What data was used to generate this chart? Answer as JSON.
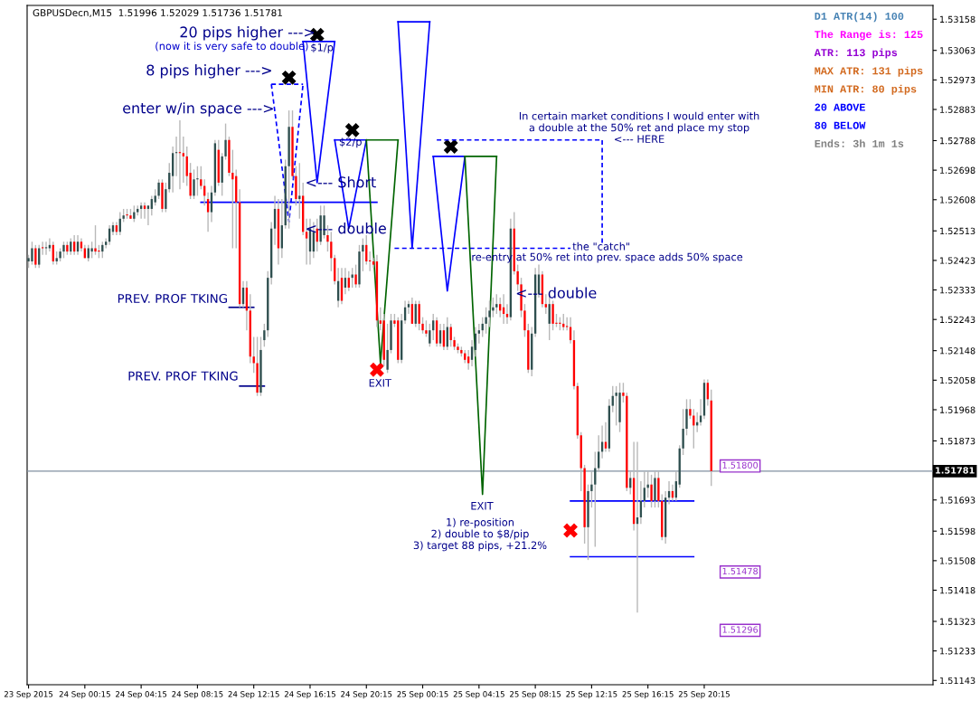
{
  "chart_data": {
    "type": "candlestick",
    "title": "GBPUSDecn,M15  1.51996 1.52029 1.51736 1.51781",
    "x": [
      "2015-09-23T20:15",
      "2015-09-23T20:30",
      "2015-09-23T20:45",
      "2015-09-23T21:00",
      "2015-09-23T21:15",
      "2015-09-23T21:30",
      "2015-09-23T21:45",
      "2015-09-23T22:00",
      "2015-09-23T22:15",
      "2015-09-23T22:30",
      "2015-09-23T22:45",
      "2015-09-23T23:00",
      "2015-09-23T23:15",
      "2015-09-23T23:30",
      "2015-09-23T23:45",
      "2015-09-24T00:00",
      "2015-09-24T00:15",
      "2015-09-24T00:30",
      "2015-09-24T00:45",
      "2015-09-24T01:00",
      "2015-09-24T01:15",
      "2015-09-24T01:30",
      "2015-09-24T01:45",
      "2015-09-24T02:00",
      "2015-09-24T02:15",
      "2015-09-24T02:30",
      "2015-09-24T02:45",
      "2015-09-24T03:00",
      "2015-09-24T03:15",
      "2015-09-24T03:30",
      "2015-09-24T03:45",
      "2015-09-24T04:00",
      "2015-09-24T04:15",
      "2015-09-24T04:30",
      "2015-09-24T04:45",
      "2015-09-24T05:00",
      "2015-09-24T05:15",
      "2015-09-24T05:30",
      "2015-09-24T05:45",
      "2015-09-24T06:00",
      "2015-09-24T06:15",
      "2015-09-24T06:30",
      "2015-09-24T06:45",
      "2015-09-24T07:00",
      "2015-09-24T07:15",
      "2015-09-24T07:30",
      "2015-09-24T07:45",
      "2015-09-24T08:00",
      "2015-09-24T08:15",
      "2015-09-24T08:30",
      "2015-09-24T08:45",
      "2015-09-24T09:00",
      "2015-09-24T09:15",
      "2015-09-24T09:30",
      "2015-09-24T09:45",
      "2015-09-24T10:00",
      "2015-09-24T10:15",
      "2015-09-24T10:30",
      "2015-09-24T10:45",
      "2015-09-24T11:00",
      "2015-09-24T11:15",
      "2015-09-24T11:30",
      "2015-09-24T11:45",
      "2015-09-24T12:00",
      "2015-09-24T12:15",
      "2015-09-24T12:30",
      "2015-09-24T12:45",
      "2015-09-24T13:00",
      "2015-09-24T13:15",
      "2015-09-24T13:30",
      "2015-09-24T13:45",
      "2015-09-24T14:00",
      "2015-09-24T14:15",
      "2015-09-24T14:30",
      "2015-09-24T14:45",
      "2015-09-24T15:00",
      "2015-09-24T15:15",
      "2015-09-24T15:30",
      "2015-09-24T15:45",
      "2015-09-24T16:00",
      "2015-09-24T16:15",
      "2015-09-24T16:30",
      "2015-09-24T16:45",
      "2015-09-24T17:00",
      "2015-09-24T17:15",
      "2015-09-24T17:30",
      "2015-09-24T17:45",
      "2015-09-24T18:00",
      "2015-09-24T18:15",
      "2015-09-24T18:30",
      "2015-09-24T18:45",
      "2015-09-24T19:00",
      "2015-09-24T19:15",
      "2015-09-24T19:30",
      "2015-09-24T19:45",
      "2015-09-24T20:00",
      "2015-09-24T20:15",
      "2015-09-24T20:30",
      "2015-09-24T20:45",
      "2015-09-24T21:00",
      "2015-09-24T21:15",
      "2015-09-24T21:30",
      "2015-09-24T21:45",
      "2015-09-24T22:00",
      "2015-09-24T22:15",
      "2015-09-24T22:30",
      "2015-09-24T22:45",
      "2015-09-24T23:00",
      "2015-09-24T23:15",
      "2015-09-24T23:30",
      "2015-09-24T23:45",
      "2015-09-25T00:00",
      "2015-09-25T00:15",
      "2015-09-25T00:30",
      "2015-09-25T00:45",
      "2015-09-25T01:00",
      "2015-09-25T01:15",
      "2015-09-25T01:30",
      "2015-09-25T01:45",
      "2015-09-25T02:00",
      "2015-09-25T02:15",
      "2015-09-25T02:30",
      "2015-09-25T02:45",
      "2015-09-25T03:00",
      "2015-09-25T03:15",
      "2015-09-25T03:30",
      "2015-09-25T03:45",
      "2015-09-25T04:00",
      "2015-09-25T04:15",
      "2015-09-25T04:30",
      "2015-09-25T04:45",
      "2015-09-25T05:00",
      "2015-09-25T05:15",
      "2015-09-25T05:30",
      "2015-09-25T05:45",
      "2015-09-25T06:00",
      "2015-09-25T06:15",
      "2015-09-25T06:30",
      "2015-09-25T06:45",
      "2015-09-25T07:00",
      "2015-09-25T07:15",
      "2015-09-25T07:30",
      "2015-09-25T07:45",
      "2015-09-25T08:00",
      "2015-09-25T08:15",
      "2015-09-25T08:30",
      "2015-09-25T08:45",
      "2015-09-25T09:00",
      "2015-09-25T09:15",
      "2015-09-25T09:30",
      "2015-09-25T09:45",
      "2015-09-25T10:00",
      "2015-09-25T10:15",
      "2015-09-25T10:30",
      "2015-09-25T10:45",
      "2015-09-25T11:00",
      "2015-09-25T11:15",
      "2015-09-25T11:30",
      "2015-09-25T11:45",
      "2015-09-25T12:00",
      "2015-09-25T12:15",
      "2015-09-25T12:30",
      "2015-09-25T12:45",
      "2015-09-25T13:00",
      "2015-09-25T13:15",
      "2015-09-25T13:30",
      "2015-09-25T13:45",
      "2015-09-25T14:00",
      "2015-09-25T14:15",
      "2015-09-25T14:30",
      "2015-09-25T14:45",
      "2015-09-25T15:00",
      "2015-09-25T15:15",
      "2015-09-25T15:30",
      "2015-09-25T15:45",
      "2015-09-25T16:00",
      "2015-09-25T16:15",
      "2015-09-25T16:30",
      "2015-09-25T16:45",
      "2015-09-25T17:00",
      "2015-09-25T17:15",
      "2015-09-25T17:30",
      "2015-09-25T17:45",
      "2015-09-25T18:00",
      "2015-09-25T18:15",
      "2015-09-25T18:30",
      "2015-09-25T18:45",
      "2015-09-25T19:00",
      "2015-09-25T19:15",
      "2015-09-25T19:30",
      "2015-09-25T19:45",
      "2015-09-25T20:00",
      "2015-09-25T20:15",
      "2015-09-25T20:30",
      "2015-09-25T20:45"
    ],
    "ohlc": [
      [
        1.5242,
        1.5244,
        1.524,
        1.5243
      ],
      [
        1.5242,
        1.5248,
        1.5241,
        1.5246
      ],
      [
        1.5246,
        1.5247,
        1.524,
        1.5241
      ],
      [
        1.5241,
        1.5247,
        1.524,
        1.5246
      ],
      [
        1.5246,
        1.5248,
        1.5244,
        1.5246
      ],
      [
        1.5246,
        1.5248,
        1.5244,
        1.5246
      ],
      [
        1.5246,
        1.5249,
        1.5245,
        1.5247
      ],
      [
        1.5247,
        1.5248,
        1.5241,
        1.5242
      ],
      [
        1.5242,
        1.5245,
        1.5241,
        1.5243
      ],
      [
        1.5243,
        1.5246,
        1.5242,
        1.5245
      ],
      [
        1.5245,
        1.5248,
        1.5243,
        1.5247
      ],
      [
        1.5247,
        1.5248,
        1.5244,
        1.5245
      ],
      [
        1.5245,
        1.5249,
        1.5244,
        1.5248
      ],
      [
        1.5248,
        1.525,
        1.5244,
        1.5245
      ],
      [
        1.5245,
        1.525,
        1.5244,
        1.5248
      ],
      [
        1.5248,
        1.5249,
        1.5245,
        1.5246
      ],
      [
        1.5246,
        1.5247,
        1.5243,
        1.5243
      ],
      [
        1.5243,
        1.5247,
        1.5242,
        1.5246
      ],
      [
        1.5245,
        1.5248,
        1.5243,
        1.5246
      ],
      [
        1.5246,
        1.5253,
        1.5244,
        1.5245
      ],
      [
        1.5245,
        1.5247,
        1.5243,
        1.5245
      ],
      [
        1.5245,
        1.5248,
        1.5243,
        1.5247
      ],
      [
        1.5247,
        1.5249,
        1.5246,
        1.5248
      ],
      [
        1.5248,
        1.5253,
        1.5247,
        1.5252
      ],
      [
        1.5251,
        1.5254,
        1.525,
        1.5253
      ],
      [
        1.5253,
        1.5254,
        1.525,
        1.5251
      ],
      [
        1.5251,
        1.5257,
        1.525,
        1.5255
      ],
      [
        1.5255,
        1.5258,
        1.5254,
        1.5256
      ],
      [
        1.5256,
        1.5258,
        1.5255,
        1.5256
      ],
      [
        1.5256,
        1.5258,
        1.5255,
        1.5255
      ],
      [
        1.5255,
        1.5259,
        1.5254,
        1.5257
      ],
      [
        1.5257,
        1.5259,
        1.5256,
        1.5258
      ],
      [
        1.5258,
        1.526,
        1.5255,
        1.5259
      ],
      [
        1.5259,
        1.526,
        1.5255,
        1.5258
      ],
      [
        1.5258,
        1.5259,
        1.5253,
        1.5259
      ],
      [
        1.5258,
        1.5262,
        1.5256,
        1.5261
      ],
      [
        1.526,
        1.5264,
        1.5259,
        1.5262
      ],
      [
        1.5262,
        1.5267,
        1.5261,
        1.5266
      ],
      [
        1.5266,
        1.5267,
        1.5257,
        1.5258
      ],
      [
        1.5258,
        1.5266,
        1.5257,
        1.5264
      ],
      [
        1.5264,
        1.5272,
        1.5263,
        1.5269
      ],
      [
        1.5268,
        1.5277,
        1.5263,
        1.5275
      ],
      [
        1.5275,
        1.528,
        1.5268,
        1.5275
      ],
      [
        1.5275,
        1.5285,
        1.5264,
        1.5275
      ],
      [
        1.5275,
        1.528,
        1.5266,
        1.5274
      ],
      [
        1.5274,
        1.5277,
        1.5265,
        1.5268
      ],
      [
        1.5269,
        1.5272,
        1.5261,
        1.5262
      ],
      [
        1.5262,
        1.527,
        1.5261,
        1.5267
      ],
      [
        1.5267,
        1.5271,
        1.5262,
        1.5267
      ],
      [
        1.5267,
        1.5271,
        1.5264,
        1.5265
      ],
      [
        1.5265,
        1.5267,
        1.5259,
        1.5262
      ],
      [
        1.5261,
        1.5263,
        1.5251,
        1.5257
      ],
      [
        1.5257,
        1.5265,
        1.5254,
        1.5263
      ],
      [
        1.5263,
        1.5279,
        1.5262,
        1.5278
      ],
      [
        1.5276,
        1.5279,
        1.5265,
        1.5266
      ],
      [
        1.5266,
        1.5275,
        1.5262,
        1.5274
      ],
      [
        1.5274,
        1.5284,
        1.5273,
        1.5279
      ],
      [
        1.5279,
        1.528,
        1.5268,
        1.5269
      ],
      [
        1.5269,
        1.5276,
        1.5246,
        1.5267
      ],
      [
        1.5268,
        1.527,
        1.5246,
        1.526
      ],
      [
        1.526,
        1.5264,
        1.5228,
        1.5229
      ],
      [
        1.5229,
        1.5236,
        1.5228,
        1.5234
      ],
      [
        1.5234,
        1.5236,
        1.5221,
        1.5227
      ],
      [
        1.5227,
        1.5232,
        1.5211,
        1.5213
      ],
      [
        1.5213,
        1.5219,
        1.5208,
        1.5211
      ],
      [
        1.5211,
        1.5219,
        1.5201,
        1.5202
      ],
      [
        1.5202,
        1.5219,
        1.5201,
        1.5215
      ],
      [
        1.5218,
        1.5223,
        1.5216,
        1.5221
      ],
      [
        1.5221,
        1.5239,
        1.5219,
        1.5237
      ],
      [
        1.5237,
        1.5254,
        1.5235,
        1.5252
      ],
      [
        1.5252,
        1.5262,
        1.5247,
        1.5258
      ],
      [
        1.5258,
        1.5261,
        1.5241,
        1.5246
      ],
      [
        1.5246,
        1.5261,
        1.5243,
        1.5253
      ],
      [
        1.5253,
        1.5273,
        1.5252,
        1.5271
      ],
      [
        1.5271,
        1.5288,
        1.5252,
        1.5283
      ],
      [
        1.5283,
        1.5288,
        1.5267,
        1.5268
      ],
      [
        1.5268,
        1.5271,
        1.5259,
        1.5261
      ],
      [
        1.5261,
        1.5272,
        1.5255,
        1.5262
      ],
      [
        1.5262,
        1.5266,
        1.525,
        1.5251
      ],
      [
        1.5251,
        1.5255,
        1.5241,
        1.5249
      ],
      [
        1.5245,
        1.5255,
        1.5241,
        1.5252
      ],
      [
        1.5245,
        1.5254,
        1.5243,
        1.5251
      ],
      [
        1.5252,
        1.5255,
        1.5245,
        1.5248
      ],
      [
        1.5248,
        1.5259,
        1.5247,
        1.5256
      ],
      [
        1.525,
        1.5259,
        1.5249,
        1.5256
      ],
      [
        1.525,
        1.5253,
        1.5245,
        1.5248
      ],
      [
        1.5248,
        1.5251,
        1.5239,
        1.5243
      ],
      [
        1.5243,
        1.5244,
        1.5235,
        1.5236
      ],
      [
        1.523,
        1.524,
        1.5228,
        1.5236
      ],
      [
        1.5237,
        1.524,
        1.5229,
        1.523
      ],
      [
        1.5234,
        1.524,
        1.5232,
        1.5237
      ],
      [
        1.5237,
        1.5239,
        1.5233,
        1.5234
      ],
      [
        1.5237,
        1.524,
        1.5234,
        1.5238
      ],
      [
        1.5238,
        1.5241,
        1.5234,
        1.5235
      ],
      [
        1.5235,
        1.5247,
        1.5234,
        1.5245
      ],
      [
        1.5245,
        1.5249,
        1.5239,
        1.5247
      ],
      [
        1.5247,
        1.525,
        1.5241,
        1.5242
      ],
      [
        1.5242,
        1.5245,
        1.5239,
        1.5242
      ],
      [
        1.5242,
        1.5243,
        1.524,
        1.5241
      ],
      [
        1.5242,
        1.5244,
        1.5222,
        1.5224
      ],
      [
        1.5224,
        1.5228,
        1.5221,
        1.5223
      ],
      [
        1.5224,
        1.5226,
        1.521,
        1.5212
      ],
      [
        1.5209,
        1.5223,
        1.5208,
        1.5215
      ],
      [
        1.5215,
        1.5226,
        1.5214,
        1.5224
      ],
      [
        1.5224,
        1.5226,
        1.5222,
        1.5223
      ],
      [
        1.5224,
        1.5225,
        1.5211,
        1.5212
      ],
      [
        1.5212,
        1.5226,
        1.5211,
        1.5224
      ],
      [
        1.5224,
        1.523,
        1.5223,
        1.5228
      ],
      [
        1.5228,
        1.523,
        1.5226,
        1.5229
      ],
      [
        1.5229,
        1.5231,
        1.5223,
        1.5223
      ],
      [
        1.5223,
        1.523,
        1.5222,
        1.5229
      ],
      [
        1.5229,
        1.523,
        1.5221,
        1.5223
      ],
      [
        1.5223,
        1.5225,
        1.522,
        1.5221
      ],
      [
        1.5221,
        1.5224,
        1.5219,
        1.522
      ],
      [
        1.5217,
        1.5223,
        1.5216,
        1.5221
      ],
      [
        1.5221,
        1.5226,
        1.5218,
        1.5224
      ],
      [
        1.5224,
        1.5225,
        1.5216,
        1.5217
      ],
      [
        1.5217,
        1.5223,
        1.5216,
        1.5221
      ],
      [
        1.5221,
        1.5223,
        1.5215,
        1.5216
      ],
      [
        1.5216,
        1.5225,
        1.5215,
        1.5222
      ],
      [
        1.5222,
        1.5223,
        1.5216,
        1.5218
      ],
      [
        1.5218,
        1.5219,
        1.5215,
        1.5216
      ],
      [
        1.5216,
        1.5217,
        1.5214,
        1.5215
      ],
      [
        1.5215,
        1.5216,
        1.5213,
        1.5214
      ],
      [
        1.5214,
        1.5215,
        1.5211,
        1.5212
      ],
      [
        1.5213,
        1.5215,
        1.5209,
        1.5211
      ],
      [
        1.5212,
        1.5218,
        1.521,
        1.5216
      ],
      [
        1.5215,
        1.5222,
        1.5213,
        1.522
      ],
      [
        1.522,
        1.5223,
        1.5217,
        1.5221
      ],
      [
        1.5221,
        1.5225,
        1.5219,
        1.5223
      ],
      [
        1.5223,
        1.5228,
        1.522,
        1.5225
      ],
      [
        1.5225,
        1.523,
        1.5222,
        1.5227
      ],
      [
        1.5227,
        1.5231,
        1.5225,
        1.5228
      ],
      [
        1.5228,
        1.5232,
        1.5226,
        1.5229
      ],
      [
        1.5229,
        1.5231,
        1.5225,
        1.5227
      ],
      [
        1.5228,
        1.5232,
        1.5223,
        1.5226
      ],
      [
        1.5226,
        1.5229,
        1.5223,
        1.5225
      ],
      [
        1.5225,
        1.5255,
        1.5224,
        1.5252
      ],
      [
        1.5252,
        1.5257,
        1.5238,
        1.5239
      ],
      [
        1.5239,
        1.5241,
        1.5233,
        1.5235
      ],
      [
        1.5235,
        1.5237,
        1.5225,
        1.5227
      ],
      [
        1.5227,
        1.5229,
        1.5219,
        1.5221
      ],
      [
        1.5221,
        1.5223,
        1.5208,
        1.5209
      ],
      [
        1.5209,
        1.5222,
        1.5207,
        1.522
      ],
      [
        1.522,
        1.524,
        1.5219,
        1.5238
      ],
      [
        1.5232,
        1.5241,
        1.5231,
        1.5238
      ],
      [
        1.5238,
        1.5239,
        1.5228,
        1.5229
      ],
      [
        1.5229,
        1.5232,
        1.5226,
        1.5228
      ],
      [
        1.5223,
        1.5232,
        1.5218,
        1.5229
      ],
      [
        1.5229,
        1.523,
        1.5221,
        1.5223
      ],
      [
        1.5223,
        1.5226,
        1.5222,
        1.5223
      ],
      [
        1.5223,
        1.5225,
        1.5221,
        1.5223
      ],
      [
        1.5223,
        1.5226,
        1.5221,
        1.5222
      ],
      [
        1.5222,
        1.5225,
        1.5221,
        1.5222
      ],
      [
        1.5222,
        1.5225,
        1.5217,
        1.5218
      ],
      [
        1.5218,
        1.5221,
        1.5203,
        1.5204
      ],
      [
        1.5204,
        1.5205,
        1.5188,
        1.5189
      ],
      [
        1.5189,
        1.519,
        1.5172,
        1.5179
      ],
      [
        1.5179,
        1.518,
        1.5156,
        1.5161
      ],
      [
        1.5161,
        1.5174,
        1.5151,
        1.5172
      ],
      [
        1.5172,
        1.5178,
        1.5167,
        1.5174
      ],
      [
        1.5174,
        1.5184,
        1.5155,
        1.5179
      ],
      [
        1.5179,
        1.5189,
        1.5178,
        1.5184
      ],
      [
        1.5184,
        1.5192,
        1.5182,
        1.5187
      ],
      [
        1.5187,
        1.5193,
        1.5184,
        1.5185
      ],
      [
        1.5185,
        1.52,
        1.5184,
        1.5198
      ],
      [
        1.5198,
        1.5204,
        1.5196,
        1.5201
      ],
      [
        1.5201,
        1.5204,
        1.5192,
        1.5202
      ],
      [
        1.5193,
        1.5205,
        1.519,
        1.5202
      ],
      [
        1.5202,
        1.5205,
        1.5199,
        1.5201
      ],
      [
        1.5201,
        1.5202,
        1.5172,
        1.5173
      ],
      [
        1.5173,
        1.5178,
        1.5171,
        1.5176
      ],
      [
        1.5176,
        1.5187,
        1.516,
        1.5162
      ],
      [
        1.5162,
        1.5187,
        1.5135,
        1.5164
      ],
      [
        1.5164,
        1.5175,
        1.5162,
        1.5169
      ],
      [
        1.5169,
        1.5178,
        1.5167,
        1.5173
      ],
      [
        1.5173,
        1.5178,
        1.517,
        1.5174
      ],
      [
        1.5174,
        1.5177,
        1.5167,
        1.5169
      ],
      [
        1.5169,
        1.5178,
        1.5167,
        1.5176
      ],
      [
        1.5176,
        1.5178,
        1.5167,
        1.5169
      ],
      [
        1.5169,
        1.5171,
        1.5157,
        1.5158
      ],
      [
        1.5158,
        1.5172,
        1.5156,
        1.517
      ],
      [
        1.517,
        1.5175,
        1.5168,
        1.5172
      ],
      [
        1.5172,
        1.5174,
        1.5169,
        1.517
      ],
      [
        1.517,
        1.5178,
        1.5169,
        1.5175
      ],
      [
        1.5174,
        1.5186,
        1.5173,
        1.5185
      ],
      [
        1.5185,
        1.5197,
        1.5183,
        1.5191
      ],
      [
        1.5191,
        1.52,
        1.5189,
        1.5197
      ],
      [
        1.5197,
        1.52,
        1.5194,
        1.5195
      ],
      [
        1.5195,
        1.5197,
        1.5185,
        1.5192
      ],
      [
        1.5192,
        1.5196,
        1.519,
        1.5193
      ],
      [
        1.5193,
        1.52,
        1.5192,
        1.5195
      ],
      [
        1.5195,
        1.5206,
        1.5194,
        1.5205
      ],
      [
        1.5205,
        1.5206,
        1.5198,
        1.52
      ],
      [
        1.51996,
        1.52029,
        1.51736,
        1.51781
      ]
    ],
    "colors": [
      "#2f4f4f",
      "#2f4f4f",
      "#ff0000",
      "#2f4f4f",
      "#ff0000",
      "#2f4f4f",
      "#2f4f4f",
      "#ff0000",
      "#2f4f4f",
      "#2f4f4f",
      "#2f4f4f",
      "#ff0000",
      "#2f4f4f",
      "#ff0000",
      "#2f4f4f",
      "#ff0000",
      "#ff0000",
      "#2f4f4f",
      "#2f4f4f",
      "#ff0000",
      "#ff0000",
      "#2f4f4f",
      "#2f4f4f",
      "#2f4f4f",
      "#2f4f4f",
      "#ff0000",
      "#2f4f4f",
      "#2f4f4f",
      "#ff0000",
      "#ff0000",
      "#2f4f4f",
      "#2f4f4f",
      "#2f4f4f",
      "#ff0000",
      "#2f4f4f",
      "#2f4f4f",
      "#2f4f4f",
      "#2f4f4f",
      "#ff0000",
      "#2f4f4f",
      "#2f4f4f",
      "#2f4f4f",
      "#2f4f4f",
      "#ff0000",
      "#ff0000",
      "#ff0000",
      "#ff0000",
      "#2f4f4f",
      "#2f4f4f",
      "#ff0000",
      "#ff0000",
      "#ff0000",
      "#2f4f4f",
      "#2f4f4f",
      "#ff0000",
      "#2f4f4f",
      "#2f4f4f",
      "#ff0000",
      "#ff0000",
      "#ff0000",
      "#ff0000",
      "#2f4f4f",
      "#ff0000",
      "#ff0000",
      "#ff0000",
      "#ff0000",
      "#2f4f4f",
      "#2f4f4f",
      "#2f4f4f",
      "#2f4f4f",
      "#2f4f4f",
      "#ff0000",
      "#2f4f4f",
      "#2f4f4f",
      "#2f4f4f",
      "#ff0000",
      "#ff0000",
      "#2f4f4f",
      "#ff0000",
      "#ff0000",
      "#2f4f4f",
      "#2f4f4f",
      "#ff0000",
      "#2f4f4f",
      "#2f4f4f",
      "#ff0000",
      "#ff0000",
      "#ff0000",
      "#2f4f4f",
      "#ff0000",
      "#2f4f4f",
      "#ff0000",
      "#2f4f4f",
      "#ff0000",
      "#2f4f4f",
      "#2f4f4f",
      "#ff0000",
      "#ff0000",
      "#ff0000",
      "#ff0000",
      "#ff0000",
      "#ff0000",
      "#2f4f4f",
      "#2f4f4f",
      "#ff0000",
      "#ff0000",
      "#2f4f4f",
      "#2f4f4f",
      "#2f4f4f",
      "#ff0000",
      "#2f4f4f",
      "#ff0000",
      "#ff0000",
      "#ff0000",
      "#2f4f4f",
      "#2f4f4f",
      "#ff0000",
      "#2f4f4f",
      "#ff0000",
      "#2f4f4f",
      "#ff0000",
      "#ff0000",
      "#ff0000",
      "#ff0000",
      "#ff0000",
      "#ff0000",
      "#2f4f4f",
      "#2f4f4f",
      "#2f4f4f",
      "#2f4f4f",
      "#2f4f4f",
      "#2f4f4f",
      "#2f4f4f",
      "#2f4f4f",
      "#ff0000",
      "#ff0000",
      "#ff0000",
      "#2f4f4f",
      "#ff0000",
      "#ff0000",
      "#ff0000",
      "#ff0000",
      "#ff0000",
      "#2f4f4f",
      "#2f4f4f",
      "#2f4f4f",
      "#ff0000",
      "#ff0000",
      "#2f4f4f",
      "#ff0000",
      "#ff0000",
      "#ff0000",
      "#ff0000",
      "#ff0000",
      "#ff0000",
      "#ff0000",
      "#ff0000",
      "#ff0000",
      "#ff0000",
      "#2f4f4f",
      "#2f4f4f",
      "#2f4f4f",
      "#2f4f4f",
      "#2f4f4f",
      "#ff0000",
      "#2f4f4f",
      "#2f4f4f",
      "#2f4f4f",
      "#2f4f4f",
      "#ff0000",
      "#ff0000",
      "#2f4f4f",
      "#ff0000",
      "#2f4f4f",
      "#2f4f4f",
      "#2f4f4f",
      "#2f4f4f",
      "#ff0000",
      "#2f4f4f",
      "#ff0000",
      "#ff0000",
      "#2f4f4f",
      "#2f4f4f",
      "#ff0000",
      "#2f4f4f",
      "#2f4f4f",
      "#2f4f4f",
      "#2f4f4f",
      "#ff0000",
      "#ff0000",
      "#2f4f4f",
      "#2f4f4f",
      "#2f4f4f",
      "#ff0000",
      "#ff0000"
    ],
    "series": [
      {
        "type": "line",
        "x": [
          "2015-09-24T08:30",
          "2015-09-24T21:00"
        ],
        "values": [
          1.526,
          1.526
        ],
        "color": "#0000ff"
      },
      {
        "type": "line",
        "x": [
          "2015-09-24T10:30",
          "2015-09-24T12:15"
        ],
        "values": [
          1.5228,
          1.5228
        ],
        "color": "#00008b"
      },
      {
        "type": "line",
        "x": [
          "2015-09-24T11:15",
          "2015-09-24T13:00"
        ],
        "values": [
          1.5204,
          1.5204
        ],
        "color": "#00008b"
      },
      {
        "type": "line",
        "x": [
          "2015-09-24T13:30",
          "2015-09-24T14:45",
          "2015-09-24T15:45"
        ],
        "values": [
          1.5296,
          1.5254,
          1.5296
        ],
        "color": "#0000ff",
        "line_style": "dashed"
      },
      {
        "type": "line",
        "x": [
          "2015-09-24T13:30",
          "2015-09-24T15:45"
        ],
        "values": [
          1.5296,
          1.5296
        ],
        "color": "#0000ff",
        "line_style": "dashed"
      },
      {
        "type": "line",
        "x": [
          "2015-09-24T15:45",
          "2015-09-24T16:45",
          "2015-09-24T18:00"
        ],
        "values": [
          1.5309,
          1.5266,
          1.5309
        ],
        "color": "#0000ff"
      },
      {
        "type": "line",
        "x": [
          "2015-09-24T15:45",
          "2015-09-24T18:00"
        ],
        "values": [
          1.5309,
          1.5309
        ],
        "color": "#0000ff"
      },
      {
        "type": "line",
        "x": [
          "2015-09-24T22:30",
          "2015-09-24T23:30",
          "2015-09-25T00:45"
        ],
        "values": [
          1.5315,
          1.5246,
          1.5315
        ],
        "color": "#0000ff"
      },
      {
        "type": "line",
        "x": [
          "2015-09-24T22:30",
          "2015-09-25T00:45"
        ],
        "values": [
          1.5315,
          1.5315
        ],
        "color": "#0000ff"
      },
      {
        "type": "line",
        "x": [
          "2015-09-24T18:00",
          "2015-09-24T19:00",
          "2015-09-24T20:15"
        ],
        "values": [
          1.5279,
          1.5252,
          1.5279
        ],
        "color": "#0000ff"
      },
      {
        "type": "line",
        "x": [
          "2015-09-24T18:00",
          "2015-09-24T20:15"
        ],
        "values": [
          1.5279,
          1.5279
        ],
        "color": "#0000ff"
      },
      {
        "type": "line",
        "x": [
          "2015-09-24T20:15",
          "2015-09-24T21:15",
          "2015-09-24T22:30"
        ],
        "values": [
          1.5279,
          1.5211,
          1.5279
        ],
        "color": "#006400"
      },
      {
        "type": "line",
        "x": [
          "2015-09-24T20:15",
          "2015-09-24T22:30"
        ],
        "values": [
          1.5279,
          1.5279
        ],
        "color": "#006400"
      },
      {
        "type": "line",
        "x": [
          "2015-09-24T22:15",
          "2015-09-25T10:45"
        ],
        "values": [
          1.5246,
          1.5246
        ],
        "color": "#0000ff",
        "line_style": "dashed"
      },
      {
        "type": "line",
        "x": [
          "2015-09-25T01:00",
          "2015-09-25T02:00",
          "2015-09-25T03:15"
        ],
        "values": [
          1.5274,
          1.5233,
          1.5274
        ],
        "color": "#0000ff"
      },
      {
        "type": "line",
        "x": [
          "2015-09-25T01:00",
          "2015-09-25T03:15"
        ],
        "values": [
          1.5274,
          1.5274
        ],
        "color": "#0000ff"
      },
      {
        "type": "line",
        "x": [
          "2015-09-25T03:15",
          "2015-09-25T04:30",
          "2015-09-25T05:30"
        ],
        "values": [
          1.5274,
          1.5171,
          1.5274
        ],
        "color": "#006400"
      },
      {
        "type": "line",
        "x": [
          "2015-09-25T03:15",
          "2015-09-25T05:30"
        ],
        "values": [
          1.5274,
          1.5274
        ],
        "color": "#006400"
      },
      {
        "type": "line",
        "x": [
          "2015-09-25T01:15",
          "2015-09-25T13:00",
          "2015-09-25T13:00"
        ],
        "values": [
          1.5279,
          1.5279,
          1.5247
        ],
        "color": "#0000ff",
        "line_style": "dashed"
      },
      {
        "type": "line",
        "x": [
          "2015-09-25T10:45",
          "2015-09-25T19:30"
        ],
        "values": [
          1.5169,
          1.5169
        ],
        "color": "#0000ff"
      },
      {
        "type": "line",
        "x": [
          "2015-09-25T10:45",
          "2015-09-25T19:30"
        ],
        "values": [
          1.5152,
          1.5152
        ],
        "color": "#0000ff"
      },
      {
        "type": "scatter",
        "x": [
          "2015-09-24T16:45",
          "2015-09-24T14:45",
          "2015-09-24T19:15",
          "2015-09-25T02:15"
        ],
        "values": [
          1.5311,
          1.5298,
          1.5282,
          1.5277
        ],
        "color": "#000000",
        "marker": "cross"
      },
      {
        "type": "scatter",
        "x": [
          "2015-09-24T21:00",
          "2015-09-25T10:45"
        ],
        "values": [
          1.5209,
          1.516
        ],
        "color": "#ff0000",
        "marker": "cross"
      }
    ],
    "xlim": [
      "2015-09-23T20:09",
      "2015-09-26T12:30"
    ],
    "xticks": [
      {
        "value": "2015-09-23T20:15",
        "label": "23 Sep 2015"
      },
      {
        "value": "2015-09-24T00:15",
        "label": "24 Sep 00:15"
      },
      {
        "value": "2015-09-24T04:15",
        "label": "24 Sep 04:15"
      },
      {
        "value": "2015-09-24T08:15",
        "label": "24 Sep 08:15"
      },
      {
        "value": "2015-09-24T12:15",
        "label": "24 Sep 12:15"
      },
      {
        "value": "2015-09-24T16:15",
        "label": "24 Sep 16:15"
      },
      {
        "value": "2015-09-24T20:15",
        "label": "24 Sep 20:15"
      },
      {
        "value": "2015-09-25T00:15",
        "label": "25 Sep 00:15"
      },
      {
        "value": "2015-09-25T04:15",
        "label": "25 Sep 04:15"
      },
      {
        "value": "2015-09-25T08:15",
        "label": "25 Sep 08:15"
      },
      {
        "value": "2015-09-25T12:15",
        "label": "25 Sep 12:15"
      },
      {
        "value": "2015-09-25T16:15",
        "label": "25 Sep 16:15"
      },
      {
        "value": "2015-09-25T20:15",
        "label": "25 Sep 20:15"
      }
    ],
    "ylim": [
      1.5113,
      1.532
    ],
    "yticks": [
      1.53158,
      1.53063,
      1.52973,
      1.52883,
      1.52788,
      1.52698,
      1.52608,
      1.52513,
      1.52423,
      1.52333,
      1.52243,
      1.52148,
      1.52058,
      1.51968,
      1.51873,
      1.51693,
      1.51598,
      1.51508,
      1.51418,
      1.51323,
      1.51233,
      1.51143
    ],
    "ref_lines": [
      {
        "axis": "y",
        "value": 1.51781,
        "label": "1.51781",
        "color": "#8090a0"
      }
    ],
    "annotations": [
      "20 pips higher --->",
      "(now it is very safe to double)",
      "8 pips higher --->",
      "enter w/in space --->",
      "$1/p",
      "$2/p",
      "<--- Short",
      "<--- double",
      "PREV. PROF TKING",
      "PREV. PROF TKING",
      "EXIT",
      "In certain market conditions I would enter with\na double at the 50% ret and place my stop\n<--- HERE",
      "the \"catch\"",
      "re-entry at 50% ret into prev. space adds 50% space",
      "<--- double",
      "EXIT",
      "1) re-position\n2) double to $8/pip\n3) target 88 pips, +21.2%",
      "1.51800",
      "1.51478",
      "1.51296",
      "D1 ATR(14) 100",
      "The Range is: 125",
      "ATR: 113 pips",
      "MAX ATR: 131 pips",
      "MIN ATR: 80 pips",
      "20 ABOVE",
      "80 BELOW",
      "Ends: 3h 1m 1s"
    ]
  }
}
